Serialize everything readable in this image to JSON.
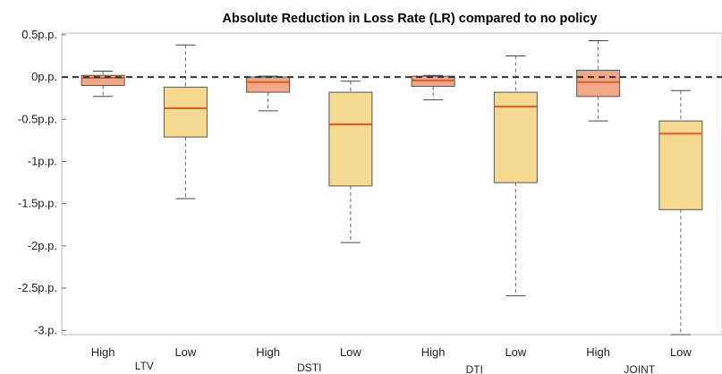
{
  "chart_data": {
    "type": "box",
    "title": "Absolute Reduction in Loss Rate (LR) compared to no policy",
    "ylim": [
      -3.05,
      0.52
    ],
    "yticks": [
      {
        "value": 0.5,
        "label": "0.5p.p."
      },
      {
        "value": 0,
        "label": "0p.p."
      },
      {
        "value": -0.5,
        "label": "-0.5p.p."
      },
      {
        "value": -1,
        "label": "-1p.p."
      },
      {
        "value": -1.5,
        "label": "-1.5p.p."
      },
      {
        "value": -2,
        "label": "-2p.p."
      },
      {
        "value": -2.5,
        "label": "-2.5p.p."
      },
      {
        "value": -3,
        "label": "-3.p."
      }
    ],
    "reference_line": 0,
    "groups": [
      "LTV",
      "DSTI",
      "DTI",
      "JOINT"
    ],
    "boxes": [
      {
        "group": "LTV",
        "label": "High",
        "whisker_high": 0.07,
        "q3": 0.02,
        "median": -0.01,
        "q1": -0.1,
        "whisker_low": -0.23
      },
      {
        "group": "LTV",
        "label": "Low",
        "whisker_high": 0.38,
        "q3": -0.12,
        "median": -0.37,
        "q1": -0.71,
        "whisker_low": -1.44
      },
      {
        "group": "DSTI",
        "label": "High",
        "whisker_high": 0.01,
        "q3": 0.0,
        "median": -0.06,
        "q1": -0.18,
        "whisker_low": -0.4
      },
      {
        "group": "DSTI",
        "label": "Low",
        "whisker_high": -0.05,
        "q3": -0.18,
        "median": -0.56,
        "q1": -1.29,
        "whisker_low": -1.96
      },
      {
        "group": "DTI",
        "label": "High",
        "whisker_high": 0.02,
        "q3": 0.01,
        "median": -0.04,
        "q1": -0.11,
        "whisker_low": -0.27
      },
      {
        "group": "DTI",
        "label": "Low",
        "whisker_high": 0.25,
        "q3": -0.18,
        "median": -0.35,
        "q1": -1.25,
        "whisker_low": -2.59
      },
      {
        "group": "JOINT",
        "label": "High",
        "whisker_high": 0.43,
        "q3": 0.08,
        "median": -0.06,
        "q1": -0.23,
        "whisker_low": -0.52
      },
      {
        "group": "JOINT",
        "label": "Low",
        "whisker_high": -0.16,
        "q3": -0.52,
        "median": -0.67,
        "q1": -1.57,
        "whisker_low": -3.05
      }
    ],
    "colors": {
      "high_fill": "#eeaa88",
      "low_fill": "#f7da92",
      "box_edge": "#555555",
      "median": "#ee5522",
      "whisker": "#666666",
      "reference": "#333333"
    }
  }
}
